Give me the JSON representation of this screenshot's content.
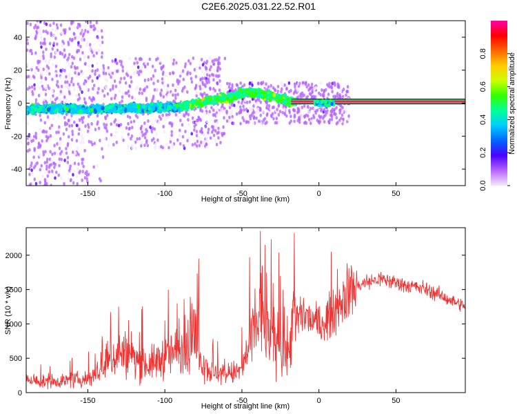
{
  "title": "C2E6.2025.031.22.52.R01",
  "chart_data": [
    {
      "type": "heatmap",
      "xlabel": "Height of straight line (km)",
      "ylabel": "Frequency (Hz)",
      "xlim": [
        -190,
        95
      ],
      "ylim": [
        -50,
        50
      ],
      "x_ticks": [
        -150,
        -100,
        -50,
        0,
        50
      ],
      "y_ticks": [
        -40,
        -20,
        0,
        20,
        40
      ],
      "colorbar": {
        "label": "Normalized spectral amplitude",
        "range": [
          0,
          1
        ],
        "ticks": [
          0.0,
          0.2,
          0.4,
          0.6,
          0.8
        ],
        "colors": [
          "#f4e8ff",
          "#b766ff",
          "#4b00ff",
          "#0066ff",
          "#00ccff",
          "#00ff99",
          "#33ff00",
          "#ccff00",
          "#ffcc00",
          "#ff6600",
          "#ff0000",
          "#ff00aa"
        ]
      },
      "ridge": {
        "x": [
          -190,
          -170,
          -150,
          -130,
          -110,
          -90,
          -80,
          -70,
          -60,
          -50,
          -45,
          -40,
          -35,
          -30,
          -25,
          -20,
          -10,
          0,
          10,
          20,
          40,
          60,
          80,
          95
        ],
        "y": [
          -4,
          -3,
          -4,
          -3,
          -3,
          -2,
          0,
          2,
          3,
          6,
          7,
          6,
          5,
          4,
          3,
          1,
          1,
          0,
          1,
          1,
          1,
          1,
          1,
          1
        ]
      },
      "continuous_band": {
        "x_start": -18,
        "x_end": 95,
        "frequency": 1
      }
    },
    {
      "type": "line",
      "xlabel": "Height of straight line (km)",
      "ylabel": "SNR (10 * v/v)",
      "xlim": [
        -190,
        95
      ],
      "ylim": [
        0,
        2400
      ],
      "x_ticks": [
        -150,
        -100,
        -50,
        0,
        50
      ],
      "y_ticks": [
        0,
        500,
        1000,
        1500,
        2000
      ],
      "series": [
        {
          "color": "#ee3333",
          "x": [
            -190,
            -180,
            -170,
            -160,
            -150,
            -140,
            -130,
            -120,
            -110,
            -100,
            -90,
            -80,
            -75,
            -70,
            -60,
            -50,
            -45,
            -40,
            -37,
            -35,
            -30,
            -25,
            -20,
            -18,
            -15,
            -10,
            -5,
            0,
            5,
            10,
            20,
            30,
            40,
            50,
            60,
            70,
            80,
            90,
            95
          ],
          "values": [
            200,
            150,
            170,
            180,
            200,
            350,
            600,
            500,
            400,
            520,
            620,
            700,
            450,
            300,
            260,
            320,
            700,
            1000,
            1200,
            900,
            800,
            700,
            500,
            1000,
            1050,
            1150,
            1050,
            1000,
            1050,
            1200,
            1500,
            1600,
            1650,
            1600,
            1550,
            1500,
            1400,
            1300,
            1250
          ]
        }
      ],
      "spikes": [
        {
          "x": -130,
          "y": 1250
        },
        {
          "x": -100,
          "y": 1050
        },
        {
          "x": -78,
          "y": 1950
        },
        {
          "x": -50,
          "y": 950
        },
        {
          "x": -38,
          "y": 2350
        },
        {
          "x": -35,
          "y": 2150
        },
        {
          "x": -25,
          "y": 1700
        },
        {
          "x": -16,
          "y": 2320
        },
        {
          "x": -12,
          "y": 1400
        },
        {
          "x": 8,
          "y": 2050
        },
        {
          "x": 12,
          "y": 1800
        }
      ]
    }
  ]
}
